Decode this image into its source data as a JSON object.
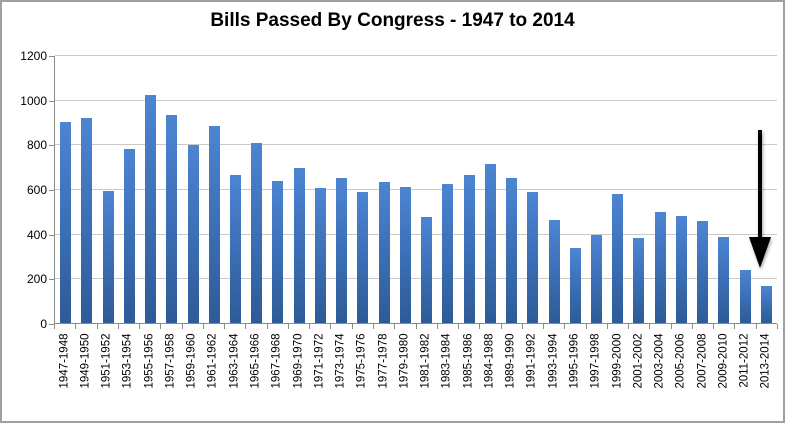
{
  "chart_data": {
    "type": "bar",
    "title": "Bills Passed By Congress - 1947 to 2014",
    "categories": [
      "1947-1948",
      "1949-1950",
      "1951-1952",
      "1953-1954",
      "1955-1956",
      "1957-1958",
      "1959-1960",
      "1961-1962",
      "1963-1964",
      "1965-1966",
      "1967-1968",
      "1969-1970",
      "1971-1972",
      "1973-1974",
      "1975-1976",
      "1977-1978",
      "1979-1980",
      "1981-1982",
      "1983-1984",
      "1985-1986",
      "1984-1988",
      "1989-1990",
      "1991-1992",
      "1993-1994",
      "1995-1996",
      "1997-1998",
      "1999-2000",
      "2001-2002",
      "2003-2004",
      "2005-2006",
      "2007-2008",
      "2009-2010",
      "2011-2012",
      "2013-2014"
    ],
    "values": [
      905,
      920,
      595,
      780,
      1025,
      935,
      800,
      885,
      665,
      810,
      640,
      695,
      605,
      650,
      590,
      635,
      610,
      475,
      625,
      665,
      715,
      650,
      590,
      465,
      335,
      395,
      580,
      380,
      500,
      480,
      460,
      385,
      240,
      165
    ],
    "xlabel": "",
    "ylabel": "",
    "ylim": [
      0,
      1200
    ],
    "yticks": [
      0,
      200,
      400,
      600,
      800,
      1000,
      1200
    ],
    "grid": true,
    "legend": "none",
    "colors": {
      "bar_top": "#4d85d2",
      "bar_bottom": "#2e5b97",
      "gridline": "#c9c9c9",
      "axis": "#8c8c8c",
      "frame_border": "#a0a0a0",
      "background": "#ffffff",
      "text": "#000000",
      "annotation_arrow": "#000000"
    },
    "annotation": {
      "type": "down-arrow",
      "target_category": "2013-2014"
    }
  }
}
